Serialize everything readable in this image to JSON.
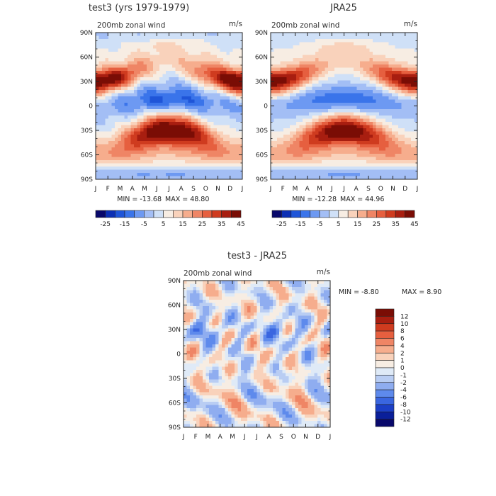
{
  "chart_data": [
    {
      "type": "heatmap",
      "title": "test3 (yrs 1979-1979)",
      "subtitle_left": "200mb zonal wind",
      "subtitle_right": "m/s",
      "x_ticks": [
        "J",
        "F",
        "M",
        "A",
        "M",
        "J",
        "J",
        "A",
        "S",
        "O",
        "N",
        "D",
        "J"
      ],
      "y_ticks": [
        "90N",
        "60N",
        "30N",
        "0",
        "30S",
        "60S",
        "90S"
      ],
      "min_label": "MIN = -13.68",
      "max_label": "MAX =  48.80",
      "min": -13.68,
      "max": 48.8,
      "colorbar_labels": [
        "-25",
        "-15",
        "-5",
        "5",
        "15",
        "25",
        "35",
        "45"
      ]
    },
    {
      "type": "heatmap",
      "title": "JRA25",
      "subtitle_left": "200mb zonal wind",
      "subtitle_right": "m/s",
      "x_ticks": [
        "J",
        "F",
        "M",
        "A",
        "M",
        "J",
        "J",
        "A",
        "S",
        "O",
        "N",
        "D",
        "J"
      ],
      "y_ticks": [
        "90N",
        "60N",
        "30N",
        "0",
        "30S",
        "60S",
        "90S"
      ],
      "min_label": "MIN = -12.28",
      "max_label": "MAX =  44.96",
      "min": -12.28,
      "max": 44.96,
      "colorbar_labels": [
        "-25",
        "-15",
        "-5",
        "5",
        "15",
        "25",
        "35",
        "45"
      ]
    },
    {
      "type": "heatmap",
      "title": "test3 - JRA25",
      "subtitle_left": "200mb zonal wind",
      "subtitle_right": "m/s",
      "x_ticks": [
        "J",
        "F",
        "M",
        "A",
        "M",
        "J",
        "J",
        "A",
        "S",
        "O",
        "N",
        "D",
        "J"
      ],
      "y_ticks": [
        "90N",
        "60N",
        "30N",
        "0",
        "30S",
        "60S",
        "90S"
      ],
      "min_label": "MIN =  -8.80",
      "max_label": "MAX =   8.90",
      "min": -8.8,
      "max": 8.9,
      "colorbar_labels": [
        "12",
        "10",
        "8",
        "6",
        "4",
        "2",
        "1",
        "0",
        "-1",
        "-2",
        "-4",
        "-6",
        "-8",
        "-10",
        "-12"
      ]
    }
  ],
  "colors": {
    "full_scale": [
      "#08086b",
      "#0c2fb4",
      "#1f55d8",
      "#3a74ea",
      "#6d99f2",
      "#a3bef5",
      "#cfe0f7",
      "#f7ede3",
      "#f9d2bb",
      "#f6ad8d",
      "#ef8565",
      "#e65f3f",
      "#cf3b1f",
      "#a81e10",
      "#7a0d05"
    ],
    "diff_scale": [
      "#7a0d05",
      "#a81e10",
      "#cf3b1f",
      "#e65f3f",
      "#ef8565",
      "#f6ad8d",
      "#f9d2bb",
      "#f7ede3",
      "#dfeaf7",
      "#b9cdf3",
      "#8fadf0",
      "#5e8aec",
      "#3a66e0",
      "#1c3fc6",
      "#0a1f9a",
      "#08086b"
    ]
  }
}
